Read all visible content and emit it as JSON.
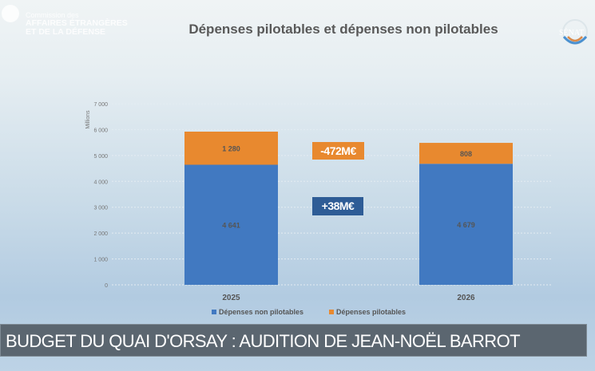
{
  "header": {
    "org_small": "Commission des",
    "org_line1": "AFFAIRES ÉTRANGÈRES",
    "org_line2": "ET DE LA DÉFENSE",
    "senat_logo": "SÉNAT"
  },
  "banner": {
    "text": "BUDGET DU QUAI D'ORSAY : AUDITION DE JEAN-NOËL BARROT"
  },
  "annotations": [
    {
      "text": "-472M€",
      "color": "#e8892f"
    },
    {
      "text": "+38M€",
      "color": "#2e5c96"
    }
  ],
  "chart_data": {
    "type": "bar",
    "stacked": true,
    "title": "Dépenses pilotables et dépenses non pilotables",
    "ylabel": "Millions",
    "categories": [
      "2025",
      "2026"
    ],
    "ylim": [
      0,
      7000
    ],
    "yticks": [
      0,
      1000,
      2000,
      3000,
      4000,
      5000,
      6000,
      7000
    ],
    "ytick_labels": [
      "0",
      "1 000",
      "2 000",
      "3 000",
      "4 000",
      "5 000",
      "6 000",
      "7 000"
    ],
    "grid": true,
    "legend": "bottom",
    "series": [
      {
        "name": "Dépenses non pilotables",
        "values": [
          4641,
          4679
        ],
        "labels": [
          "4 641",
          "4 679"
        ],
        "color": "#4179c1"
      },
      {
        "name": "Dépenses pilotables",
        "values": [
          1280,
          808
        ],
        "labels": [
          "1 280",
          "808"
        ],
        "color": "#e8892f"
      }
    ]
  }
}
